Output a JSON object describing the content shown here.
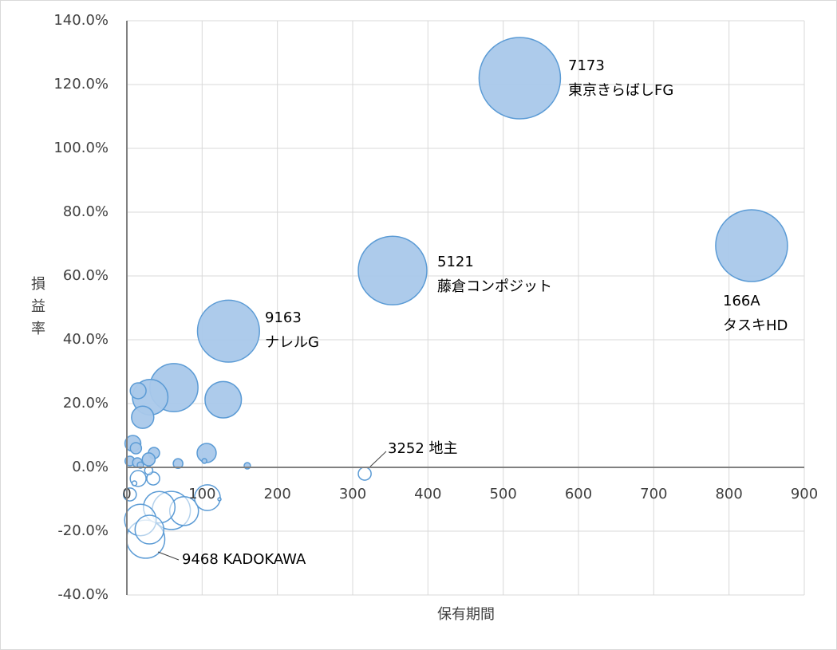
{
  "chart_data": {
    "type": "bubble",
    "x_label": "保有期間",
    "y_label": "損益率",
    "xlim": [
      0,
      900
    ],
    "xticks": [
      0,
      100,
      200,
      300,
      400,
      500,
      600,
      700,
      800,
      900
    ],
    "ylim": [
      -40,
      140
    ],
    "yticks": [
      {
        "value": -40,
        "label": "-40.0%"
      },
      {
        "value": -20,
        "label": "-20.0%"
      },
      {
        "value": 0,
        "label": "0.0%"
      },
      {
        "value": 20,
        "label": "20.0%"
      },
      {
        "value": 40,
        "label": "40.0%"
      },
      {
        "value": 60,
        "label": "60.0%"
      },
      {
        "value": 80,
        "label": "80.0%"
      },
      {
        "value": 100,
        "label": "100.0%"
      },
      {
        "value": 120,
        "label": "120.0%"
      },
      {
        "value": 140,
        "label": "140.0%"
      }
    ],
    "grid": true,
    "series": [
      {
        "color": "#5b9bd5",
        "fill": "#a9c8ea",
        "x": [
          522,
          830,
          353,
          135,
          62.5,
          128,
          31,
          15,
          21,
          8,
          12,
          106,
          36,
          29,
          68,
          103,
          160,
          4,
          14,
          18
        ],
        "values": [
          122,
          69.5,
          61.7,
          42.7,
          25,
          21.2,
          22,
          24,
          15.7,
          7.5,
          6,
          4.5,
          4.5,
          2.5,
          1.2,
          2,
          0.5,
          2,
          1.5,
          0.7
        ],
        "sizes": [
          100,
          78,
          71,
          58,
          35,
          20,
          19,
          3.8,
          7.5,
          3.8,
          1.9,
          5.5,
          1.9,
          2.5,
          1.4,
          0.35,
          0.6,
          1.4,
          1.4,
          0.6
        ],
        "data_labels": [
          [
            "7173",
            "東京きらばしFG"
          ],
          [
            "166A",
            "タスキHD"
          ],
          [
            "5121",
            "藤倉コンポジット"
          ],
          [
            "9163",
            "ナレルG"
          ],
          null,
          null,
          null,
          null,
          null,
          null,
          null,
          null,
          null,
          null,
          null,
          null,
          null,
          null,
          null,
          null
        ]
      },
      {
        "color": "#5b9bd5",
        "fill": "#ffffff",
        "x": [
          316,
          25,
          59,
          76,
          43,
          107,
          123,
          18,
          30,
          15,
          35,
          10,
          4,
          29
        ],
        "values": [
          -2,
          -22.5,
          -13.5,
          -13.7,
          -12.5,
          -9.5,
          -10,
          -16.5,
          -19.5,
          -3.5,
          -3.5,
          -5,
          -8.5,
          -1
        ],
        "sizes": [
          2.5,
          22,
          22,
          12.5,
          15,
          10,
          0.15,
          15,
          12.5,
          3.8,
          2.5,
          0.35,
          2.5,
          1
        ],
        "data_labels": [
          [
            "3252 地主"
          ],
          [
            "9468 KADOKAWA"
          ],
          null,
          null,
          null,
          null,
          null,
          null,
          null,
          null,
          null,
          null,
          null,
          null
        ]
      }
    ]
  }
}
